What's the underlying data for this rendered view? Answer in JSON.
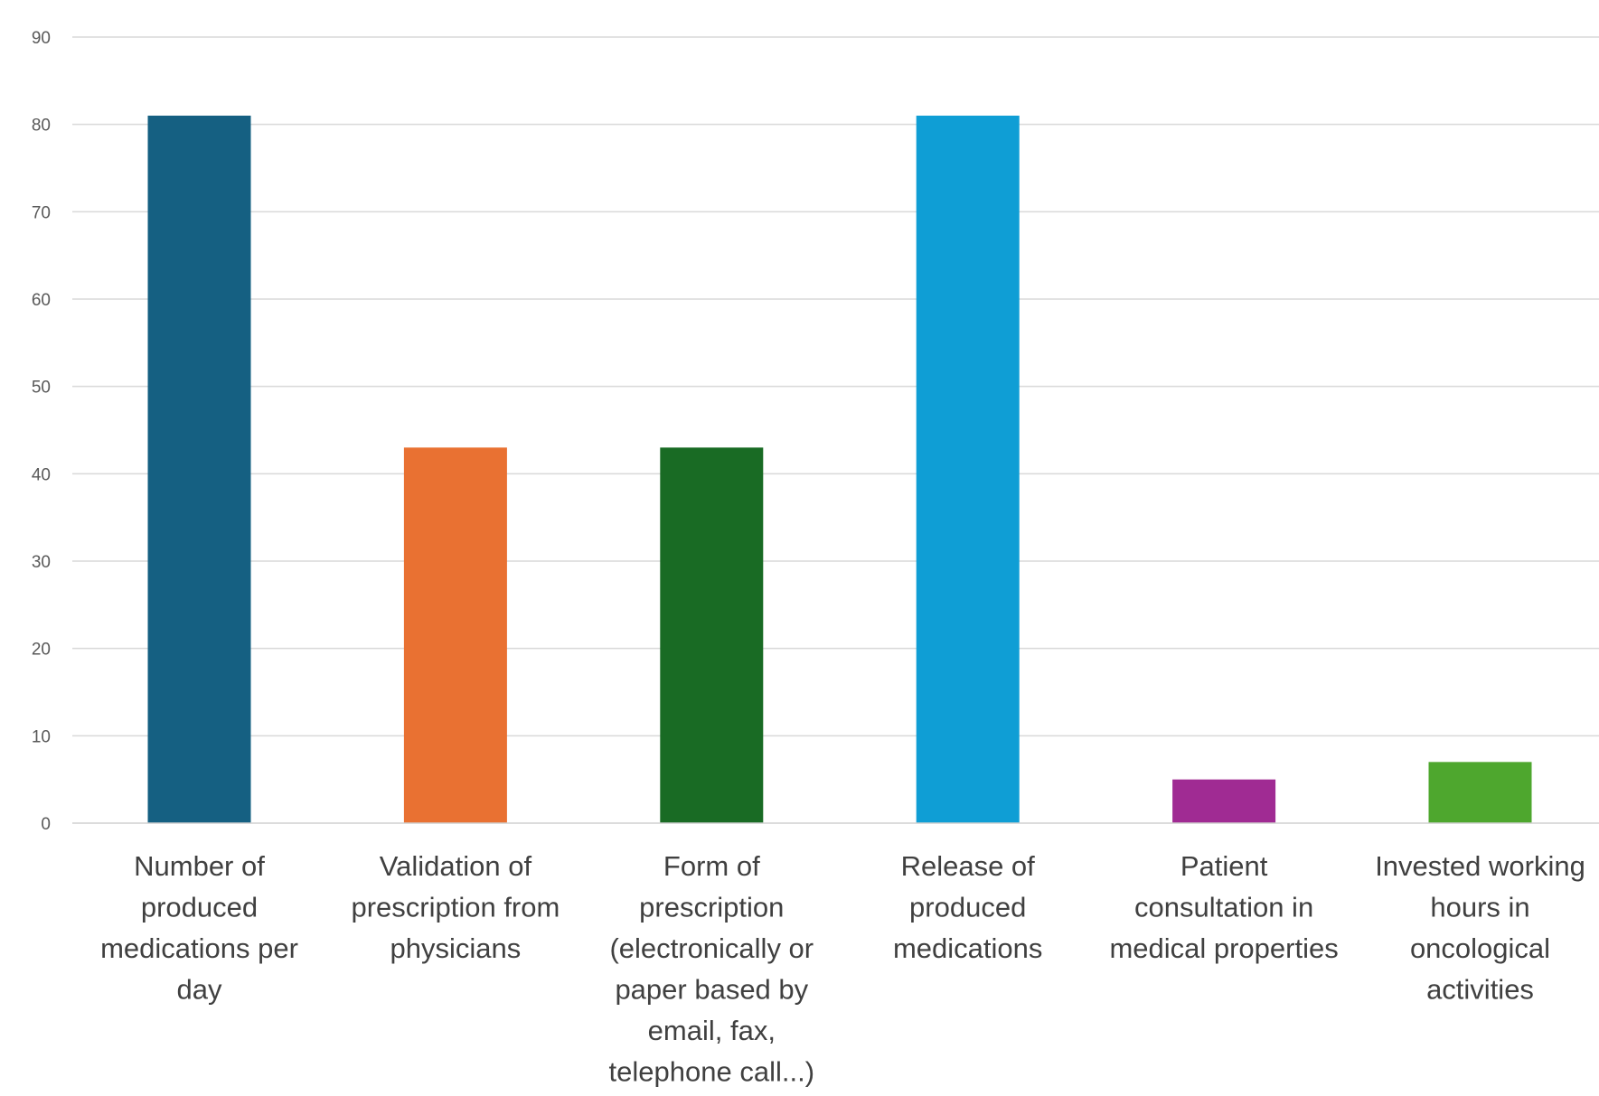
{
  "chart_data": {
    "type": "bar",
    "title": "",
    "xlabel": "",
    "ylabel": "",
    "ylim": [
      0,
      90
    ],
    "ytick_step": 10,
    "grid": true,
    "legend": "none",
    "categories": [
      "Number of produced medications per day",
      "Validation of prescription from physicians",
      "Form of prescription (electronically or paper based by email, fax, telephone call...)",
      "Release of produced medications",
      "Patient consultation in medical properties",
      "Invested working hours in oncological activities"
    ],
    "category_label_lines": [
      [
        "Number of",
        "produced",
        "medications per",
        "day"
      ],
      [
        "Validation of",
        "prescription from",
        "physicians"
      ],
      [
        "Form of",
        "prescription",
        "(electronically or",
        "paper based by",
        "email, fax,",
        "telephone call...)"
      ],
      [
        "Release of",
        "produced",
        "medications"
      ],
      [
        "Patient",
        "consultation in",
        "medical properties"
      ],
      [
        "Invested working",
        "hours in",
        "oncological",
        "activities"
      ]
    ],
    "values": [
      81,
      43,
      43,
      81,
      5,
      7
    ],
    "colors": [
      "#156082",
      "#E97132",
      "#196B24",
      "#0F9ED5",
      "#A02B93",
      "#4EA72E"
    ]
  }
}
